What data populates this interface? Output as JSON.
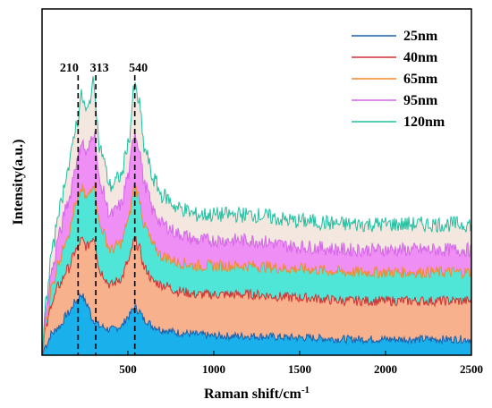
{
  "chart_data": {
    "type": "area",
    "xlabel": "Raman shift/cm",
    "xlabel_superscript": "-1",
    "ylabel": "Intensity(a.u.)",
    "xlim": [
      0,
      2500
    ],
    "ylim": [
      0,
      1
    ],
    "xticks": [
      500,
      1000,
      1500,
      2000,
      2500
    ],
    "grid": false,
    "legend_position": "top-right",
    "peaks": [
      {
        "x": 210,
        "label": "210"
      },
      {
        "x": 313,
        "label": "313"
      },
      {
        "x": 540,
        "label": "540"
      }
    ],
    "series": [
      {
        "name": "25nm",
        "line_color": "#1f5fa8",
        "fill_color": "#1ab0ec",
        "x": [
          0,
          20,
          60,
          100,
          150,
          200,
          230,
          260,
          300,
          340,
          400,
          460,
          500,
          540,
          560,
          600,
          650,
          700,
          800,
          900,
          1000,
          1200,
          1500,
          1800,
          2000,
          2200,
          2500
        ],
        "y": [
          0.0,
          0.03,
          0.07,
          0.09,
          0.13,
          0.17,
          0.19,
          0.16,
          0.11,
          0.09,
          0.08,
          0.09,
          0.12,
          0.15,
          0.14,
          0.11,
          0.09,
          0.08,
          0.07,
          0.065,
          0.06,
          0.06,
          0.055,
          0.05,
          0.05,
          0.05,
          0.05
        ]
      },
      {
        "name": "40nm",
        "line_color": "#d03030",
        "fill_color": "#f7b18c",
        "x": [
          0,
          20,
          60,
          100,
          150,
          200,
          230,
          260,
          300,
          340,
          400,
          460,
          500,
          540,
          560,
          600,
          650,
          700,
          800,
          900,
          1000,
          1200,
          1500,
          1800,
          2000,
          2200,
          2500
        ],
        "y": [
          0.0,
          0.08,
          0.17,
          0.22,
          0.27,
          0.33,
          0.36,
          0.34,
          0.37,
          0.26,
          0.22,
          0.24,
          0.29,
          0.36,
          0.34,
          0.27,
          0.23,
          0.22,
          0.2,
          0.19,
          0.19,
          0.19,
          0.18,
          0.17,
          0.17,
          0.17,
          0.17
        ]
      },
      {
        "name": "65nm",
        "line_color": "#f28a2c",
        "fill_color": "#4fe6d8",
        "x": [
          0,
          20,
          60,
          100,
          150,
          200,
          230,
          260,
          300,
          340,
          400,
          460,
          500,
          540,
          560,
          600,
          650,
          700,
          800,
          900,
          1000,
          1200,
          1500,
          1800,
          2000,
          2200,
          2500
        ],
        "y": [
          0.0,
          0.1,
          0.22,
          0.3,
          0.38,
          0.47,
          0.52,
          0.49,
          0.54,
          0.4,
          0.33,
          0.35,
          0.42,
          0.53,
          0.5,
          0.4,
          0.34,
          0.31,
          0.29,
          0.28,
          0.28,
          0.28,
          0.27,
          0.26,
          0.26,
          0.26,
          0.26
        ]
      },
      {
        "name": "95nm",
        "line_color": "#d466e8",
        "fill_color": "#ef8ef5",
        "x": [
          0,
          20,
          60,
          100,
          150,
          200,
          230,
          260,
          300,
          340,
          400,
          460,
          500,
          540,
          560,
          600,
          650,
          700,
          800,
          900,
          1000,
          1200,
          1500,
          1800,
          2000,
          2200,
          2500
        ],
        "y": [
          0.0,
          0.13,
          0.27,
          0.38,
          0.48,
          0.6,
          0.67,
          0.63,
          0.7,
          0.53,
          0.44,
          0.47,
          0.56,
          0.7,
          0.66,
          0.53,
          0.45,
          0.41,
          0.38,
          0.36,
          0.36,
          0.36,
          0.34,
          0.33,
          0.33,
          0.33,
          0.33
        ]
      },
      {
        "name": "120nm",
        "line_color": "#1ec0a0",
        "fill_color": "#f4e7e0",
        "x": [
          0,
          20,
          60,
          100,
          150,
          200,
          230,
          260,
          300,
          340,
          400,
          460,
          500,
          540,
          560,
          600,
          650,
          700,
          800,
          900,
          1000,
          1200,
          1500,
          1800,
          2000,
          2200,
          2500
        ],
        "y": [
          0.0,
          0.16,
          0.33,
          0.46,
          0.58,
          0.72,
          0.81,
          0.76,
          0.85,
          0.64,
          0.53,
          0.56,
          0.66,
          0.84,
          0.8,
          0.64,
          0.55,
          0.5,
          0.46,
          0.44,
          0.44,
          0.44,
          0.42,
          0.41,
          0.41,
          0.41,
          0.41
        ]
      }
    ]
  }
}
